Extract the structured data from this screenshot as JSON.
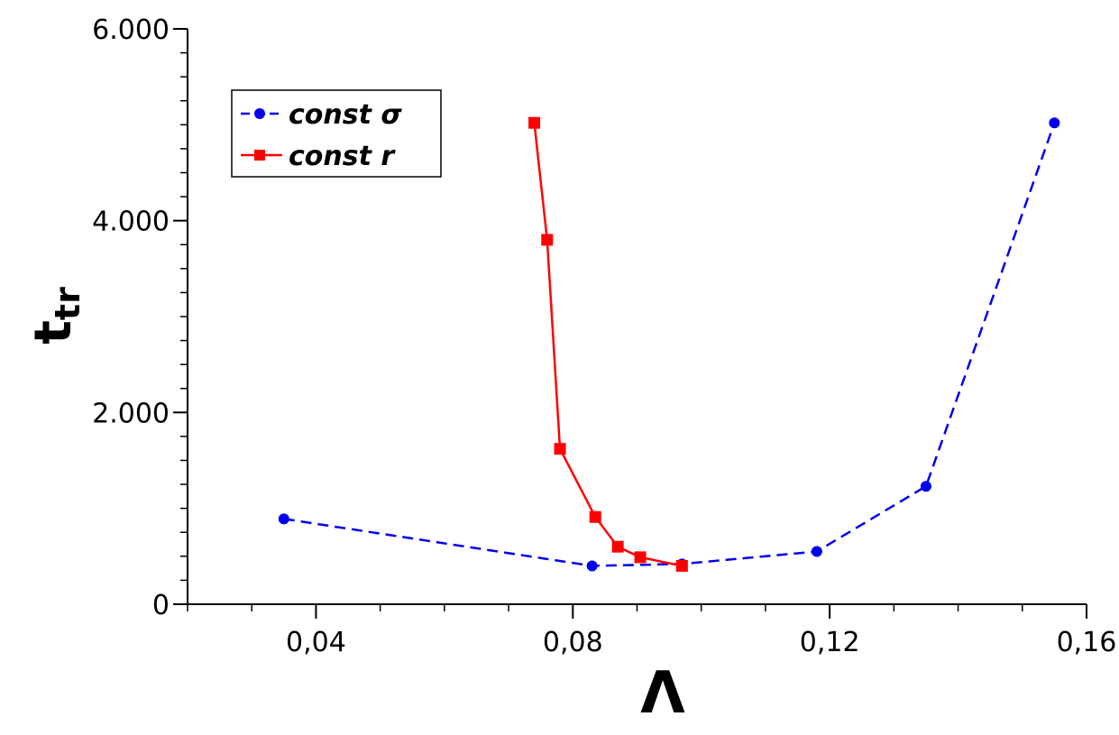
{
  "chart_data": {
    "type": "line",
    "xlim": [
      0.02,
      0.16
    ],
    "ylim": [
      0,
      6000
    ],
    "x_ticks": [
      {
        "value": 0.04,
        "label": "0,04"
      },
      {
        "value": 0.08,
        "label": "0,08"
      },
      {
        "value": 0.12,
        "label": "0,12"
      },
      {
        "value": 0.16,
        "label": "0,16"
      }
    ],
    "y_ticks": [
      {
        "value": 0,
        "label": "0"
      },
      {
        "value": 2000,
        "label": "2.000"
      },
      {
        "value": 4000,
        "label": "4.000"
      },
      {
        "value": 6000,
        "label": "6.000"
      }
    ],
    "xlabel": "Λ",
    "ylabel": "t",
    "ylabel_sub": "tr",
    "grid": false,
    "legend_position": "top-left",
    "series": [
      {
        "name": "const σ",
        "color": "#0000ee",
        "line_style": "dashed",
        "marker": "circle",
        "x": [
          0.035,
          0.083,
          0.097,
          0.118,
          0.135,
          0.155
        ],
        "y": [
          890,
          400,
          420,
          550,
          1230,
          5020
        ]
      },
      {
        "name": "const r",
        "color": "#ff0000",
        "line_style": "solid",
        "marker": "square",
        "x": [
          0.074,
          0.076,
          0.078,
          0.0835,
          0.087,
          0.0905,
          0.097
        ],
        "y": [
          5020,
          3800,
          1620,
          910,
          600,
          490,
          400
        ]
      }
    ]
  }
}
